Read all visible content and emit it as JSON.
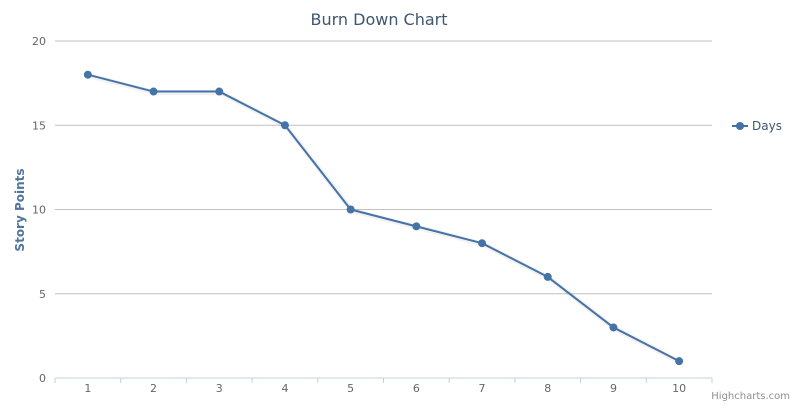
{
  "chart_data": {
    "type": "line",
    "title": "Burn Down Chart",
    "xlabel": "",
    "ylabel": "Story Points",
    "categories": [
      "1",
      "2",
      "3",
      "4",
      "5",
      "6",
      "7",
      "8",
      "9",
      "10"
    ],
    "series": [
      {
        "name": "Days",
        "values": [
          18,
          17,
          17,
          15,
          10,
          9,
          8,
          6,
          3,
          1
        ]
      }
    ],
    "ylim": [
      0,
      20
    ],
    "yticks": [
      0,
      5,
      10,
      15,
      20
    ],
    "grid": true,
    "legend_position": "right",
    "colors": {
      "series": "#4572A7",
      "grid": "#C0C0C0",
      "axis": "#C0D0E0"
    }
  },
  "credits": "Highcharts.com"
}
